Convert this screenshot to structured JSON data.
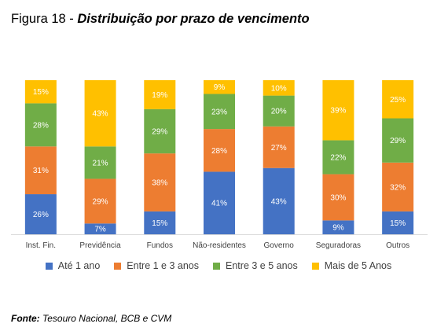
{
  "figure": {
    "label": "Figura 18 - ",
    "subtitle": "Distribuição por prazo de vencimento"
  },
  "source": {
    "label": "Fonte:",
    "text": " Tesouro Nacional, BCB e CVM"
  },
  "chart_data": {
    "type": "bar",
    "stacked": true,
    "percent_stacked": true,
    "categories": [
      "Inst. Fin.",
      "Previdência",
      "Fundos",
      "Não-residentes",
      "Governo",
      "Seguradoras",
      "Outros"
    ],
    "series": [
      {
        "name": "Até 1 ano",
        "color": "#4472C4",
        "values": [
          26,
          7,
          15,
          41,
          43,
          9,
          15
        ]
      },
      {
        "name": "Entre 1 e 3 anos",
        "color": "#ED7D31",
        "values": [
          31,
          29,
          38,
          28,
          27,
          30,
          32
        ]
      },
      {
        "name": "Entre 3 e 5 anos",
        "color": "#70AD47",
        "values": [
          28,
          21,
          29,
          23,
          20,
          22,
          29
        ]
      },
      {
        "name": "Mais de 5 Anos",
        "color": "#FFC000",
        "values": [
          15,
          43,
          19,
          9,
          10,
          39,
          25
        ]
      }
    ],
    "value_suffix": "%",
    "ylim": [
      0,
      100
    ],
    "grid": false,
    "legend_position": "bottom"
  }
}
